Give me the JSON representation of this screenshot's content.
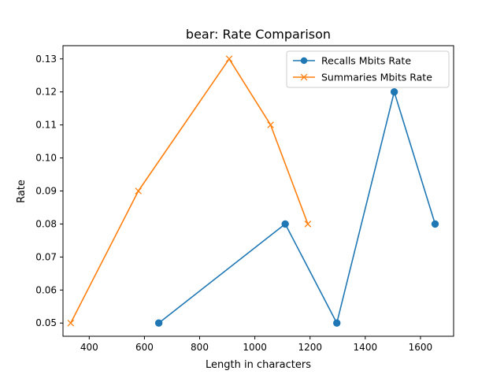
{
  "chart_data": {
    "type": "line",
    "title": "bear: Rate Comparison",
    "xlabel": "Length in characters",
    "ylabel": "Rate",
    "xlim": [
      305,
      1720
    ],
    "ylim": [
      0.046,
      0.134
    ],
    "xticks": [
      400,
      600,
      800,
      1000,
      1200,
      1400,
      1600
    ],
    "yticks": [
      0.05,
      0.06,
      0.07,
      0.08,
      0.09,
      0.1,
      0.11,
      0.12,
      0.13
    ],
    "ytick_labels": [
      "0.05",
      "0.06",
      "0.07",
      "0.08",
      "0.09",
      "0.10",
      "0.11",
      "0.12",
      "0.13"
    ],
    "grid": false,
    "legend_position": "top-right",
    "series": [
      {
        "name": "Recalls Mbits Rate",
        "color": "#1f77b4",
        "marker": "circle",
        "x": [
          652,
          1110,
          1297,
          1505,
          1653
        ],
        "y": [
          0.05,
          0.08,
          0.05,
          0.12,
          0.08
        ]
      },
      {
        "name": "Summaries Mbits Rate",
        "color": "#ff7f0e",
        "marker": "x",
        "x": [
          333,
          578,
          907,
          1057,
          1192
        ],
        "y": [
          0.05,
          0.09,
          0.13,
          0.11,
          0.08
        ]
      }
    ]
  }
}
